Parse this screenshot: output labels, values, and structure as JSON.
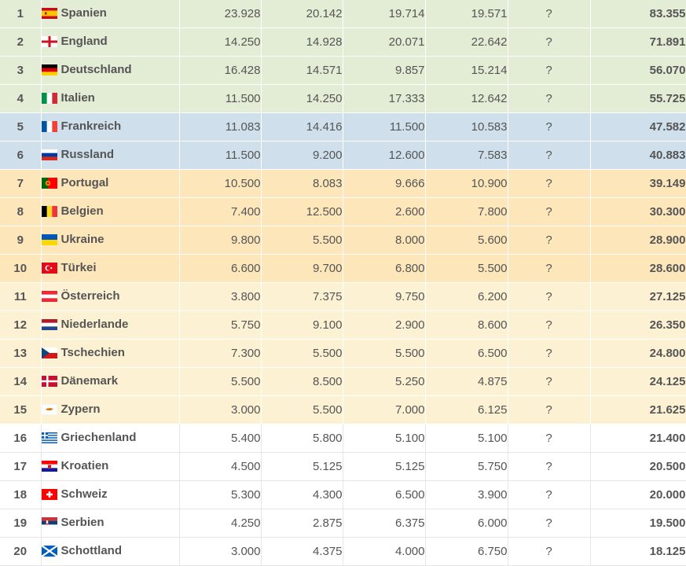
{
  "rows": [
    {
      "rank": "1",
      "country": "Spanien",
      "flag": "spain-flag",
      "s1": "23.928",
      "s2": "20.142",
      "s3": "19.714",
      "s4": "19.571",
      "s5": "?",
      "total": "83.355",
      "tier": "green"
    },
    {
      "rank": "2",
      "country": "England",
      "flag": "england-flag",
      "s1": "14.250",
      "s2": "14.928",
      "s3": "20.071",
      "s4": "22.642",
      "s5": "?",
      "total": "71.891",
      "tier": "green"
    },
    {
      "rank": "3",
      "country": "Deutschland",
      "flag": "germany-flag",
      "s1": "16.428",
      "s2": "14.571",
      "s3": "9.857",
      "s4": "15.214",
      "s5": "?",
      "total": "56.070",
      "tier": "green"
    },
    {
      "rank": "4",
      "country": "Italien",
      "flag": "italy-flag",
      "s1": "11.500",
      "s2": "14.250",
      "s3": "17.333",
      "s4": "12.642",
      "s5": "?",
      "total": "55.725",
      "tier": "green"
    },
    {
      "rank": "5",
      "country": "Frankreich",
      "flag": "france-flag",
      "s1": "11.083",
      "s2": "14.416",
      "s3": "11.500",
      "s4": "10.583",
      "s5": "?",
      "total": "47.582",
      "tier": "blue"
    },
    {
      "rank": "6",
      "country": "Russland",
      "flag": "russia-flag",
      "s1": "11.500",
      "s2": "9.200",
      "s3": "12.600",
      "s4": "7.583",
      "s5": "?",
      "total": "40.883",
      "tier": "blue"
    },
    {
      "rank": "7",
      "country": "Portugal",
      "flag": "portugal-flag",
      "s1": "10.500",
      "s2": "8.083",
      "s3": "9.666",
      "s4": "10.900",
      "s5": "?",
      "total": "39.149",
      "tier": "orange"
    },
    {
      "rank": "8",
      "country": "Belgien",
      "flag": "belgium-flag",
      "s1": "7.400",
      "s2": "12.500",
      "s3": "2.600",
      "s4": "7.800",
      "s5": "?",
      "total": "30.300",
      "tier": "orange"
    },
    {
      "rank": "9",
      "country": "Ukraine",
      "flag": "ukraine-flag",
      "s1": "9.800",
      "s2": "5.500",
      "s3": "8.000",
      "s4": "5.600",
      "s5": "?",
      "total": "28.900",
      "tier": "orange"
    },
    {
      "rank": "10",
      "country": "Türkei",
      "flag": "turkey-flag",
      "s1": "6.600",
      "s2": "9.700",
      "s3": "6.800",
      "s4": "5.500",
      "s5": "?",
      "total": "28.600",
      "tier": "orange"
    },
    {
      "rank": "11",
      "country": "Österreich",
      "flag": "austria-flag",
      "s1": "3.800",
      "s2": "7.375",
      "s3": "9.750",
      "s4": "6.200",
      "s5": "?",
      "total": "27.125",
      "tier": "yellow"
    },
    {
      "rank": "12",
      "country": "Niederlande",
      "flag": "netherlands-flag",
      "s1": "5.750",
      "s2": "9.100",
      "s3": "2.900",
      "s4": "8.600",
      "s5": "?",
      "total": "26.350",
      "tier": "yellow"
    },
    {
      "rank": "13",
      "country": "Tschechien",
      "flag": "czechia-flag",
      "s1": "7.300",
      "s2": "5.500",
      "s3": "5.500",
      "s4": "6.500",
      "s5": "?",
      "total": "24.800",
      "tier": "yellow"
    },
    {
      "rank": "14",
      "country": "Dänemark",
      "flag": "denmark-flag",
      "s1": "5.500",
      "s2": "8.500",
      "s3": "5.250",
      "s4": "4.875",
      "s5": "?",
      "total": "24.125",
      "tier": "yellow"
    },
    {
      "rank": "15",
      "country": "Zypern",
      "flag": "cyprus-flag",
      "s1": "3.000",
      "s2": "5.500",
      "s3": "7.000",
      "s4": "6.125",
      "s5": "?",
      "total": "21.625",
      "tier": "yellow"
    },
    {
      "rank": "16",
      "country": "Griechenland",
      "flag": "greece-flag",
      "s1": "5.400",
      "s2": "5.800",
      "s3": "5.100",
      "s4": "5.100",
      "s5": "?",
      "total": "21.400",
      "tier": "white"
    },
    {
      "rank": "17",
      "country": "Kroatien",
      "flag": "croatia-flag",
      "s1": "4.500",
      "s2": "5.125",
      "s3": "5.125",
      "s4": "5.750",
      "s5": "?",
      "total": "20.500",
      "tier": "white"
    },
    {
      "rank": "18",
      "country": "Schweiz",
      "flag": "switzerland-flag",
      "s1": "5.300",
      "s2": "4.300",
      "s3": "6.500",
      "s4": "3.900",
      "s5": "?",
      "total": "20.000",
      "tier": "white"
    },
    {
      "rank": "19",
      "country": "Serbien",
      "flag": "serbia-flag",
      "s1": "4.250",
      "s2": "2.875",
      "s3": "6.375",
      "s4": "6.000",
      "s5": "?",
      "total": "19.500",
      "tier": "white"
    },
    {
      "rank": "20",
      "country": "Schottland",
      "flag": "scotland-flag",
      "s1": "3.000",
      "s2": "4.375",
      "s3": "4.000",
      "s4": "6.750",
      "s5": "?",
      "total": "18.125",
      "tier": "white"
    }
  ]
}
